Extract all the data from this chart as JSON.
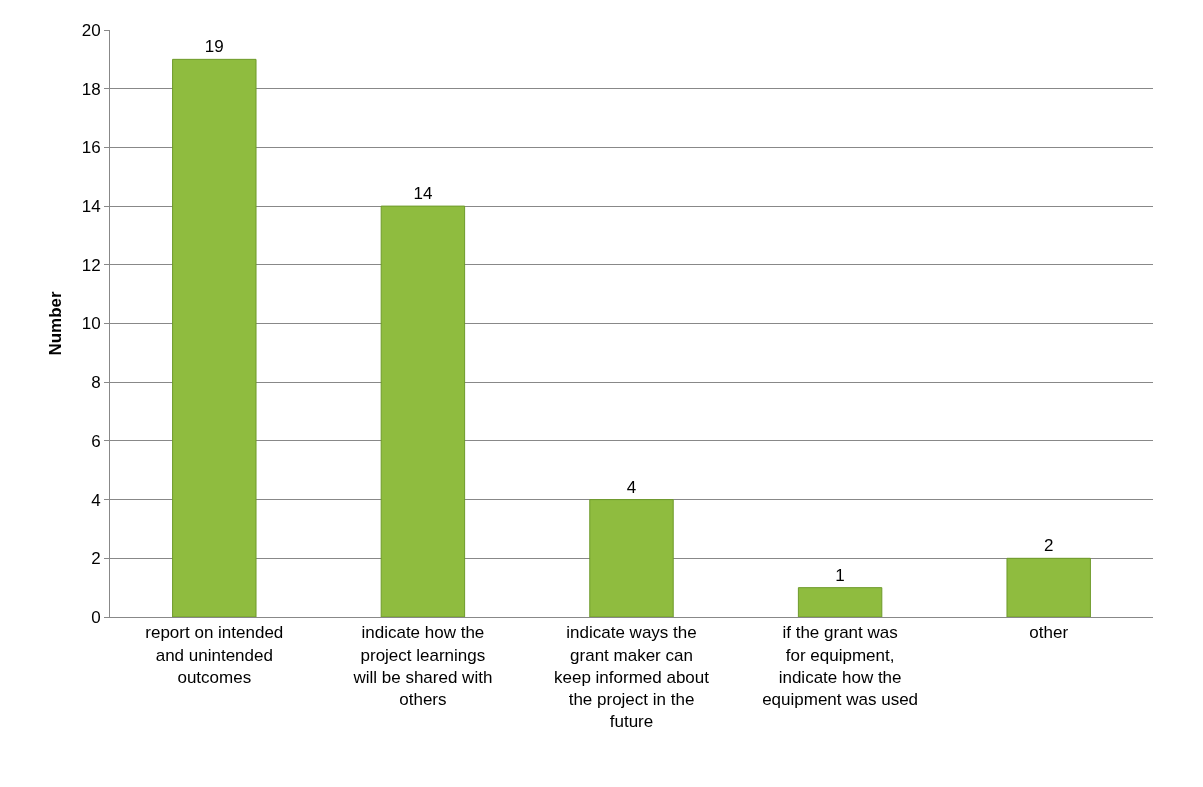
{
  "chart_data": {
    "type": "bar",
    "ylabel": "Number",
    "categories": [
      "report on intended and unintended outcomes",
      "indicate how the project learnings will be shared with others",
      "indicate ways the grant maker can keep informed about the project in the future",
      "if the grant was for equipment, indicate how the equipment was used",
      "other"
    ],
    "values": [
      19,
      14,
      4,
      1,
      2
    ],
    "color": "#8fbc3f",
    "ylim": [
      0,
      20
    ],
    "yticks": [
      0,
      2,
      4,
      6,
      8,
      10,
      12,
      14,
      16,
      18,
      20
    ],
    "grid": "y",
    "data_labels": true
  }
}
